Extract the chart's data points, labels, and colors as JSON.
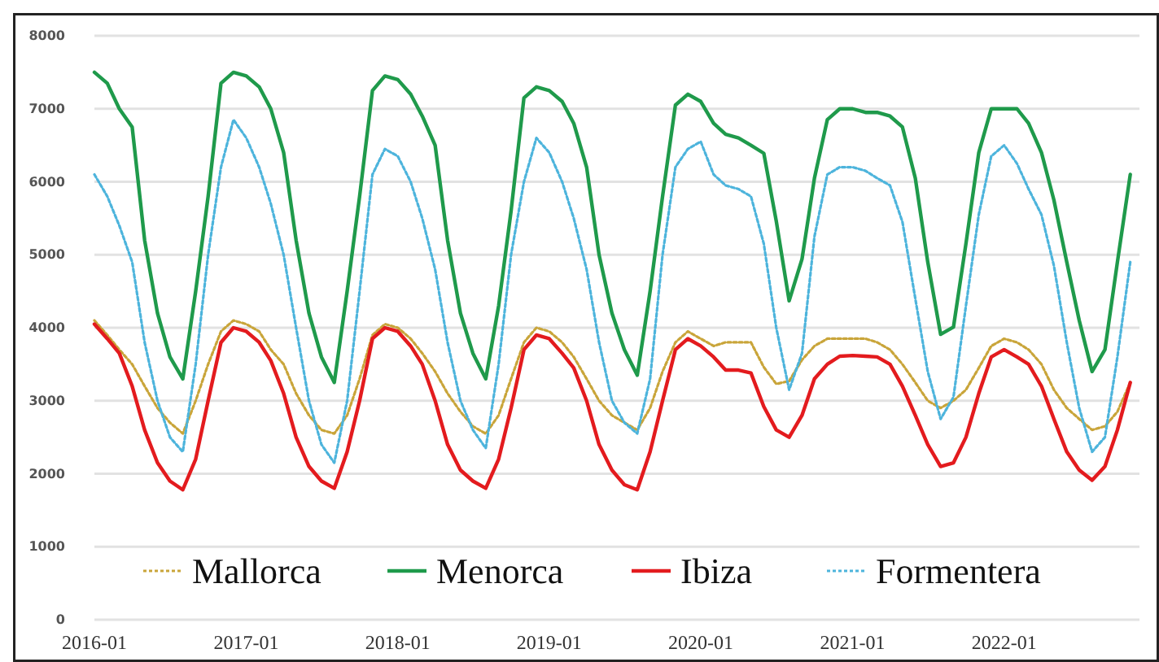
{
  "chart_data": {
    "type": "line",
    "x": [
      "2016-01",
      "2016-02",
      "2016-03",
      "2016-04",
      "2016-05",
      "2016-06",
      "2016-07",
      "2016-08",
      "2016-09",
      "2016-10",
      "2016-11",
      "2016-12",
      "2017-01",
      "2017-02",
      "2017-03",
      "2017-04",
      "2017-05",
      "2017-06",
      "2017-07",
      "2017-08",
      "2017-09",
      "2017-10",
      "2017-11",
      "2017-12",
      "2018-01",
      "2018-02",
      "2018-03",
      "2018-04",
      "2018-05",
      "2018-06",
      "2018-07",
      "2018-08",
      "2018-09",
      "2018-10",
      "2018-11",
      "2018-12",
      "2019-01",
      "2019-02",
      "2019-03",
      "2019-04",
      "2019-05",
      "2019-06",
      "2019-07",
      "2019-08",
      "2019-09",
      "2019-10",
      "2019-11",
      "2019-12",
      "2020-01",
      "2020-02",
      "2020-03",
      "2020-04",
      "2020-05",
      "2020-06",
      "2020-07",
      "2020-08",
      "2020-09",
      "2020-10",
      "2020-11",
      "2020-12",
      "2021-01",
      "2021-02",
      "2021-03",
      "2021-04",
      "2021-05",
      "2021-06",
      "2021-07",
      "2021-08",
      "2021-09",
      "2021-10",
      "2021-11",
      "2021-12",
      "2022-01",
      "2022-02",
      "2022-03",
      "2022-04",
      "2022-05",
      "2022-06",
      "2022-07",
      "2022-08",
      "2022-09",
      "2022-10",
      "2022-11"
    ],
    "series": [
      {
        "name": "Mallorca",
        "color": "#c9a53a",
        "line_style": "dotted",
        "values": [
          4100,
          3900,
          3700,
          3500,
          3200,
          2900,
          2700,
          2550,
          3000,
          3500,
          3950,
          4100,
          4050,
          3950,
          3700,
          3500,
          3100,
          2800,
          2600,
          2550,
          2800,
          3300,
          3900,
          4050,
          4000,
          3850,
          3650,
          3400,
          3100,
          2850,
          2650,
          2550,
          2800,
          3300,
          3800,
          4000,
          3950,
          3800,
          3600,
          3300,
          3000,
          2800,
          2700,
          2600,
          2900,
          3400,
          3800,
          3950,
          3850,
          3750,
          3800,
          3800,
          3800,
          3460,
          3230,
          3270,
          3560,
          3750,
          3850,
          3850,
          3850,
          3850,
          3800,
          3700,
          3500,
          3250,
          3000,
          2900,
          3000,
          3150,
          3450,
          3750,
          3850,
          3800,
          3700,
          3500,
          3150,
          2900,
          2750,
          2600,
          2650,
          2850,
          3250
        ]
      },
      {
        "name": "Menorca",
        "color": "#1f9a4b",
        "line_style": "solid",
        "values": [
          7500,
          7350,
          7000,
          6750,
          5200,
          4200,
          3600,
          3300,
          4500,
          5800,
          7350,
          7500,
          7450,
          7300,
          7000,
          6400,
          5200,
          4200,
          3600,
          3250,
          4500,
          5800,
          7250,
          7450,
          7400,
          7200,
          6900,
          6500,
          5200,
          4200,
          3650,
          3300,
          4300,
          5600,
          7150,
          7300,
          7250,
          7100,
          6800,
          6200,
          5000,
          4200,
          3700,
          3350,
          4500,
          5800,
          7050,
          7200,
          7100,
          6800,
          6650,
          6600,
          6500,
          6390,
          5460,
          4370,
          4940,
          6050,
          6850,
          7000,
          7000,
          6950,
          6950,
          6900,
          6750,
          6050,
          4900,
          3910,
          4010,
          5150,
          6400,
          7000,
          7000,
          7000,
          6800,
          6400,
          5750,
          4900,
          4100,
          3400,
          3700,
          4900,
          6100
        ]
      },
      {
        "name": "Ibiza",
        "color": "#e31b1e",
        "line_style": "solid",
        "values": [
          4050,
          3850,
          3650,
          3200,
          2600,
          2150,
          1900,
          1780,
          2200,
          3000,
          3800,
          4000,
          3950,
          3800,
          3550,
          3100,
          2500,
          2100,
          1900,
          1800,
          2300,
          3000,
          3850,
          4000,
          3950,
          3750,
          3500,
          3000,
          2400,
          2050,
          1900,
          1800,
          2200,
          2900,
          3700,
          3900,
          3850,
          3650,
          3450,
          3000,
          2400,
          2050,
          1850,
          1780,
          2300,
          3000,
          3700,
          3850,
          3750,
          3600,
          3420,
          3420,
          3380,
          2920,
          2600,
          2500,
          2800,
          3300,
          3500,
          3610,
          3620,
          3610,
          3600,
          3500,
          3200,
          2800,
          2400,
          2100,
          2150,
          2500,
          3100,
          3600,
          3700,
          3600,
          3500,
          3200,
          2750,
          2300,
          2050,
          1910,
          2100,
          2600,
          3250
        ]
      },
      {
        "name": "Formentera",
        "color": "#4db4dc",
        "line_style": "dotted",
        "values": [
          6100,
          5800,
          5400,
          4900,
          3800,
          3000,
          2500,
          2300,
          3500,
          5000,
          6200,
          6850,
          6600,
          6200,
          5700,
          5000,
          4000,
          3000,
          2400,
          2150,
          3000,
          4500,
          6100,
          6450,
          6350,
          6000,
          5500,
          4800,
          3800,
          3000,
          2600,
          2350,
          3500,
          5000,
          6000,
          6600,
          6400,
          6000,
          5500,
          4800,
          3800,
          3000,
          2700,
          2550,
          3300,
          5000,
          6200,
          6450,
          6550,
          6100,
          5950,
          5900,
          5800,
          5150,
          4000,
          3150,
          3650,
          5250,
          6100,
          6200,
          6200,
          6150,
          6050,
          5950,
          5450,
          4400,
          3400,
          2750,
          3050,
          4300,
          5550,
          6350,
          6500,
          6250,
          5900,
          5550,
          4850,
          3800,
          2900,
          2300,
          2500,
          3600,
          4900
        ]
      }
    ],
    "xlim": [
      "2016-01",
      "2022-12"
    ],
    "xticks": [
      "2016-01",
      "2017-01",
      "2018-01",
      "2019-01",
      "2020-01",
      "2021-01",
      "2022-01"
    ],
    "ylim": [
      0,
      8000
    ],
    "yticks": [
      0,
      1000,
      2000,
      3000,
      4000,
      5000,
      6000,
      7000,
      8000
    ],
    "grid": "y",
    "legend": "bottom"
  }
}
